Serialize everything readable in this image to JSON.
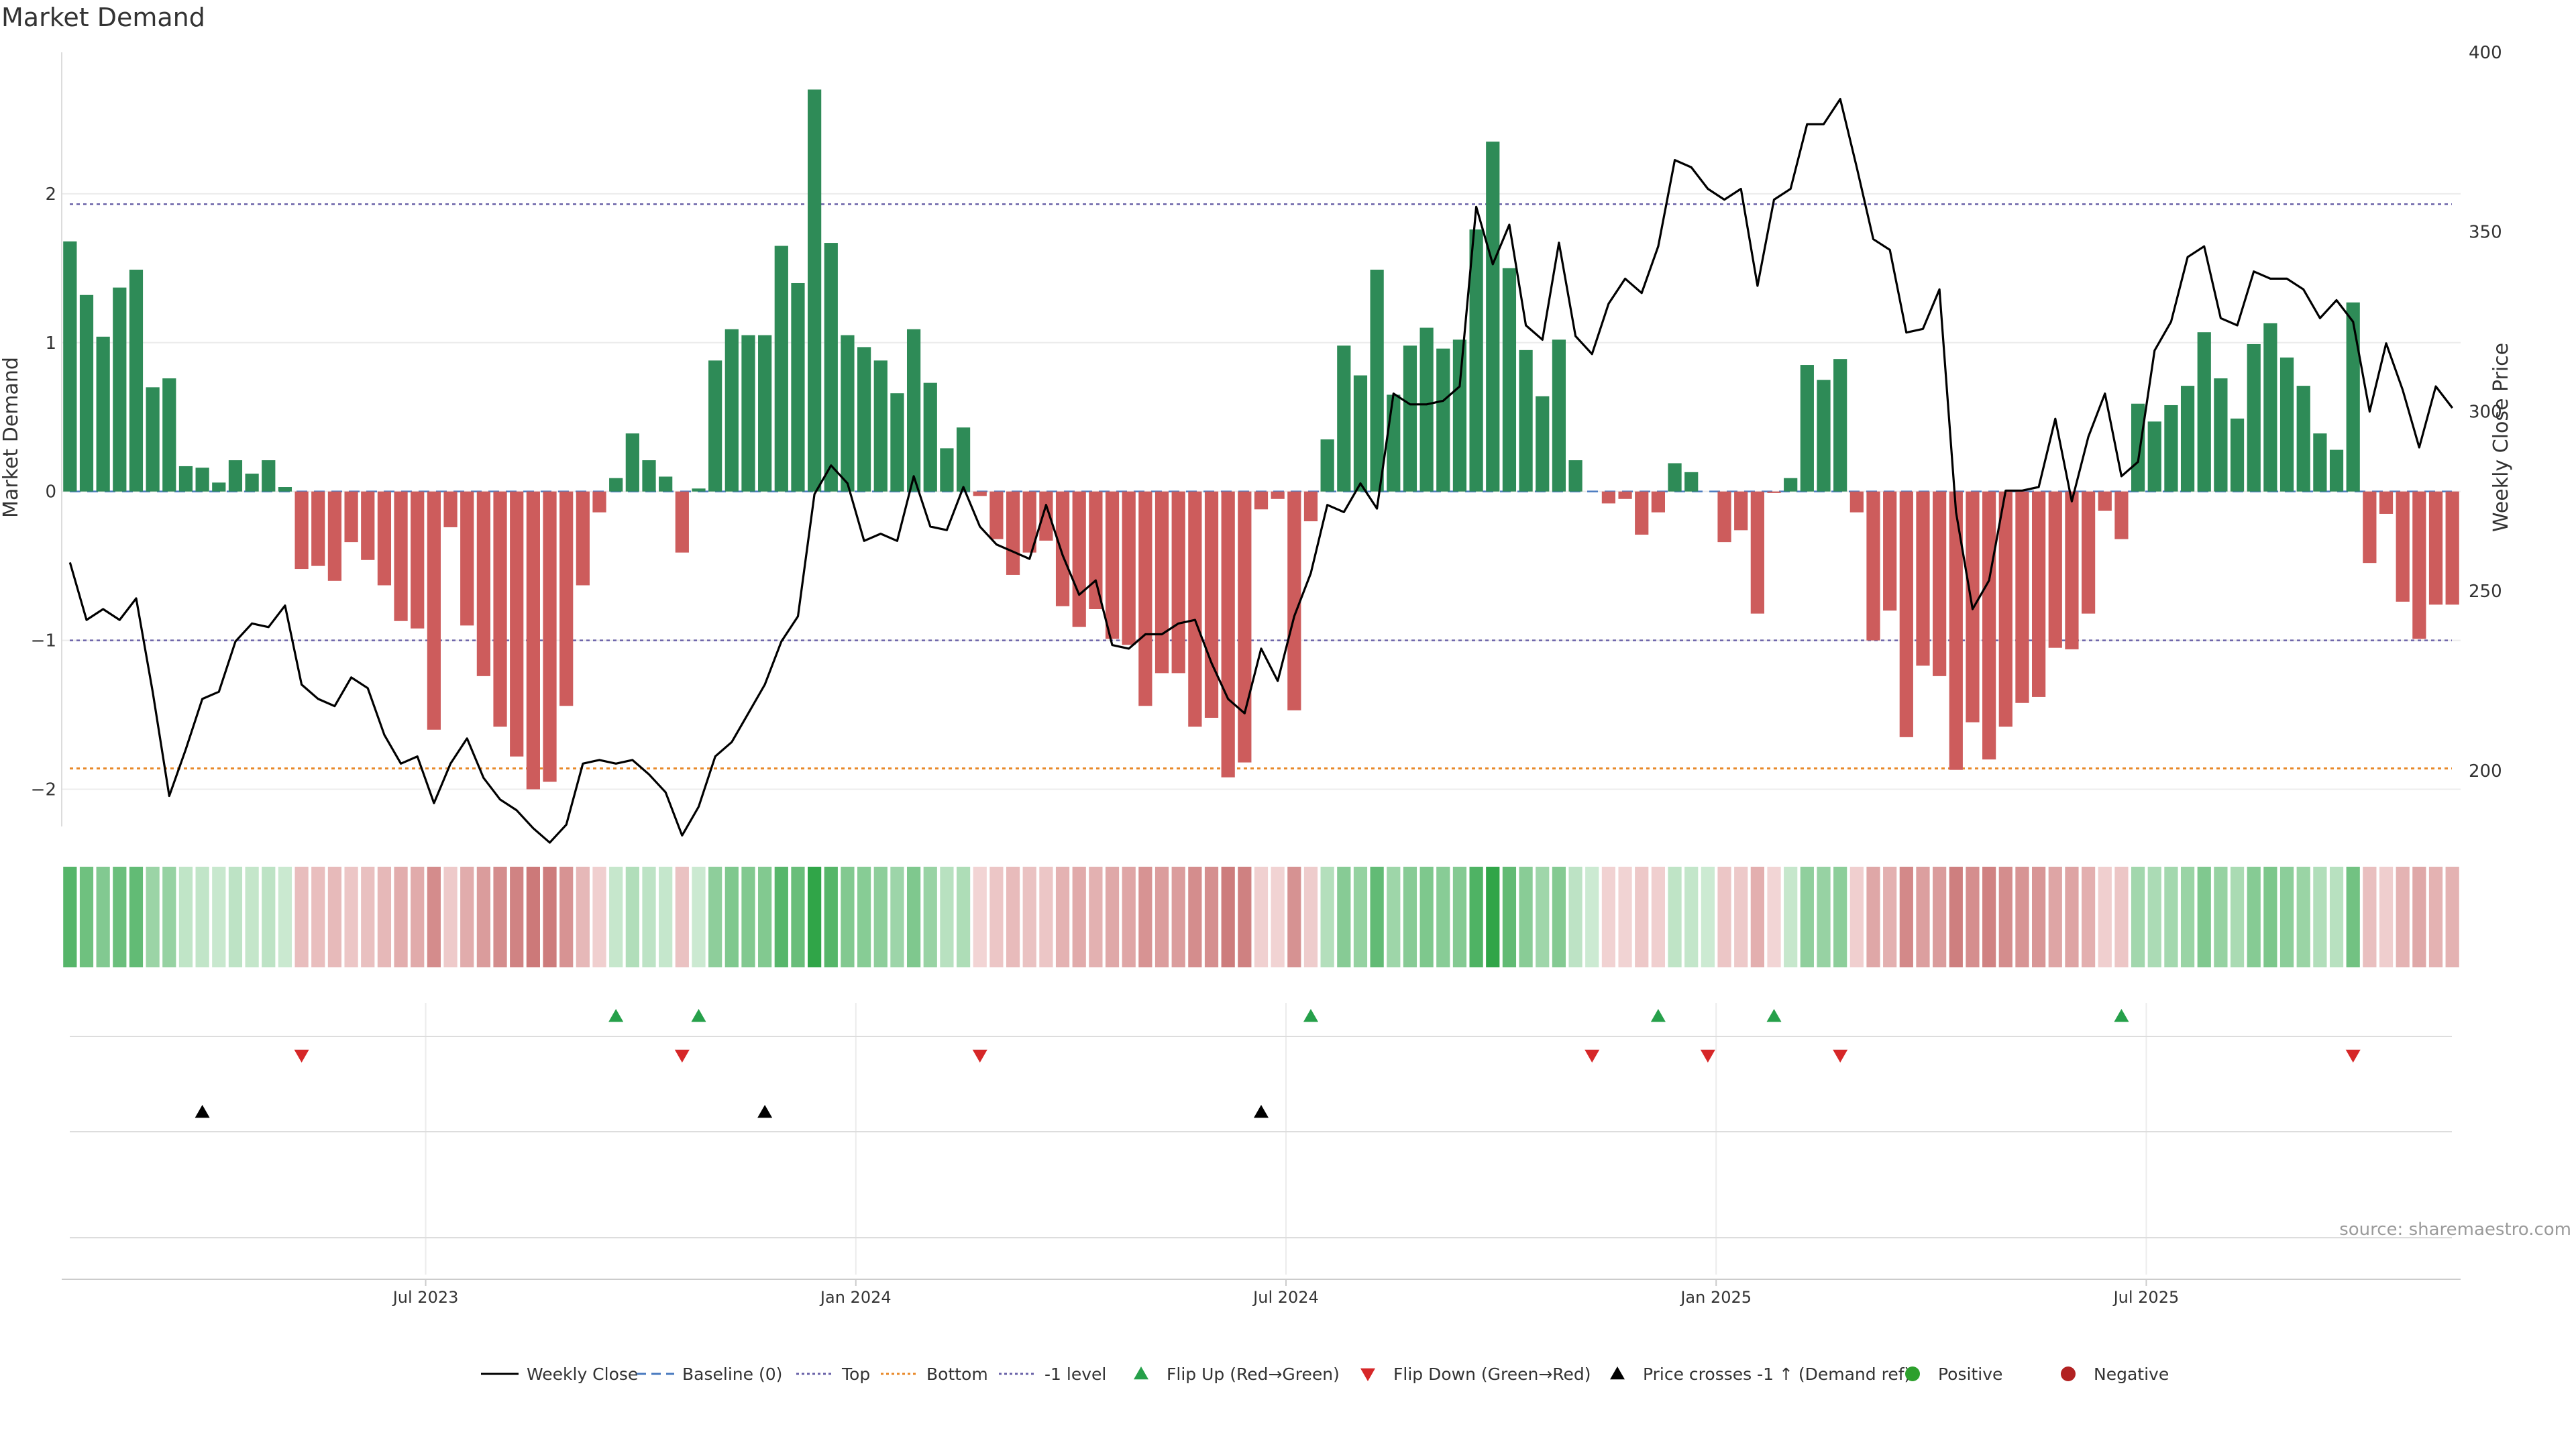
{
  "page": {
    "title": "Market Demand",
    "source": "source: sharemaestro.com"
  },
  "chart_data": {
    "type": "bar",
    "title": "Market Demand",
    "ylabel": "Market Demand",
    "y2label": "Weekly Close Price",
    "ylim": [
      -2.25,
      2.95
    ],
    "y2lim": [
      184.5,
      400
    ],
    "yticks": [
      -2,
      -1,
      0,
      1,
      2
    ],
    "y2ticks": [
      200,
      250,
      300,
      350,
      400
    ],
    "xtick_labels": [
      {
        "label": "Jul 2023",
        "index": 22
      },
      {
        "label": "Jan 2024",
        "index": 48
      },
      {
        "label": "Jul 2024",
        "index": 74
      },
      {
        "label": "Jan 2025",
        "index": 100
      },
      {
        "label": "Jul 2025",
        "index": 126
      }
    ],
    "reference_lines": [
      {
        "name": "Baseline (0)",
        "value": 0
      },
      {
        "name": "Top",
        "value": 1.93
      },
      {
        "name": "Bottom",
        "value": -1.86
      },
      {
        "name": "-1 level",
        "value": -1
      }
    ],
    "demand": [
      1.68,
      1.32,
      1.04,
      1.37,
      1.49,
      0.7,
      0.76,
      0.17,
      0.16,
      0.06,
      0.21,
      0.12,
      0.21,
      0.03,
      -0.52,
      -0.5,
      -0.6,
      -0.34,
      -0.46,
      -0.63,
      -0.87,
      -0.92,
      -1.6,
      -0.24,
      -0.9,
      -1.24,
      -1.58,
      -1.78,
      -2,
      -1.95,
      -1.44,
      -0.63,
      -0.14,
      0.09,
      0.39,
      0.21,
      0.1,
      -0.41,
      0.02,
      0.88,
      1.09,
      1.05,
      1.05,
      1.65,
      1.4,
      2.7,
      1.67,
      1.05,
      0.97,
      0.88,
      0.66,
      1.09,
      0.73,
      0.29,
      0.43,
      -0.03,
      -0.32,
      -0.56,
      -0.41,
      -0.33,
      -0.77,
      -0.91,
      -0.79,
      -0.99,
      -1.03,
      -1.44,
      -1.22,
      -1.22,
      -1.58,
      -1.52,
      -1.92,
      -1.82,
      -0.12,
      -0.05,
      -1.47,
      -0.2,
      0.35,
      0.98,
      0.78,
      1.49,
      0.65,
      0.98,
      1.1,
      0.96,
      1.02,
      1.76,
      2.35,
      1.5,
      0.95,
      0.64,
      1.02,
      0.21,
      0,
      -0.08,
      -0.05,
      -0.29,
      -0.14,
      0.19,
      0.13,
      0,
      -0.34,
      -0.26,
      -0.82,
      -0.01,
      0.09,
      0.85,
      0.75,
      0.89,
      -0.14,
      -1,
      -0.8,
      -1.65,
      -1.17,
      -1.24,
      -1.87,
      -1.55,
      -1.8,
      -1.58,
      -1.42,
      -1.38,
      -1.05,
      -1.06,
      -0.82,
      -0.13,
      -0.32,
      0.59,
      0.47,
      0.58,
      0.71,
      1.07,
      0.76,
      0.49,
      0.99,
      1.13,
      0.9,
      0.71,
      0.39,
      0.28,
      1.27,
      -0.48,
      -0.15,
      -0.74,
      -0.99,
      -0.76,
      -0.76
    ],
    "weekly_close": [
      [
        0,
        258
      ],
      [
        1,
        242
      ],
      [
        2,
        245
      ],
      [
        3,
        242
      ],
      [
        4,
        248
      ],
      [
        5,
        222
      ],
      [
        6,
        193
      ],
      [
        7,
        206
      ],
      [
        8,
        220
      ],
      [
        9,
        222
      ],
      [
        10,
        236
      ],
      [
        11,
        241
      ],
      [
        12,
        240
      ],
      [
        13,
        246
      ],
      [
        14,
        224
      ],
      [
        15,
        220
      ],
      [
        16,
        218
      ],
      [
        17,
        226
      ],
      [
        18,
        223
      ],
      [
        19,
        210
      ],
      [
        20,
        202
      ],
      [
        21,
        204
      ],
      [
        22,
        191
      ],
      [
        23,
        202
      ],
      [
        24,
        209
      ],
      [
        25,
        198
      ],
      [
        26,
        192
      ],
      [
        27,
        189
      ],
      [
        28,
        184
      ],
      [
        29,
        180
      ],
      [
        30,
        185
      ],
      [
        31,
        202
      ],
      [
        32,
        203
      ],
      [
        33,
        202
      ],
      [
        34,
        203
      ],
      [
        35,
        199
      ],
      [
        36,
        194
      ],
      [
        37,
        182
      ],
      [
        38,
        190
      ],
      [
        39,
        204
      ],
      [
        40,
        208
      ],
      [
        41,
        216
      ],
      [
        42,
        224
      ],
      [
        43,
        236
      ],
      [
        44,
        243
      ],
      [
        45,
        277
      ],
      [
        46,
        285
      ],
      [
        47,
        280
      ],
      [
        48,
        264
      ],
      [
        49,
        266
      ],
      [
        50,
        264
      ],
      [
        51,
        282
      ],
      [
        52,
        268
      ],
      [
        53,
        267
      ],
      [
        54,
        279
      ],
      [
        55,
        268
      ],
      [
        56,
        263
      ],
      [
        57,
        261
      ],
      [
        58,
        259
      ],
      [
        59,
        274
      ],
      [
        60,
        260
      ],
      [
        61,
        249
      ],
      [
        62,
        253
      ],
      [
        63,
        235
      ],
      [
        64,
        234
      ],
      [
        65,
        238
      ],
      [
        66,
        238
      ],
      [
        67,
        241
      ],
      [
        68,
        242
      ],
      [
        69,
        230
      ],
      [
        70,
        220
      ],
      [
        71,
        216
      ],
      [
        72,
        234
      ],
      [
        73,
        225
      ],
      [
        74,
        243
      ],
      [
        75,
        255
      ],
      [
        76,
        274
      ],
      [
        77,
        272
      ],
      [
        78,
        280
      ],
      [
        79,
        273
      ],
      [
        80,
        305
      ],
      [
        81,
        302
      ],
      [
        82,
        302
      ],
      [
        83,
        303
      ],
      [
        84,
        307
      ],
      [
        85,
        357
      ],
      [
        86,
        341
      ],
      [
        87,
        352
      ],
      [
        88,
        324
      ],
      [
        89,
        320
      ],
      [
        90,
        347
      ],
      [
        91,
        321
      ],
      [
        92,
        316
      ],
      [
        93,
        330
      ],
      [
        94,
        337
      ],
      [
        95,
        333
      ],
      [
        96,
        346
      ],
      [
        97,
        370
      ],
      [
        98,
        368
      ],
      [
        99,
        362
      ],
      [
        100,
        359
      ],
      [
        101,
        362
      ],
      [
        102,
        335
      ],
      [
        103,
        359
      ],
      [
        104,
        362
      ],
      [
        105,
        380
      ],
      [
        106,
        380
      ],
      [
        107,
        387
      ],
      [
        108,
        368
      ],
      [
        109,
        348
      ],
      [
        110,
        345
      ],
      [
        111,
        322
      ],
      [
        112,
        323
      ],
      [
        113,
        334
      ],
      [
        114,
        272
      ],
      [
        115,
        245
      ],
      [
        116,
        253
      ],
      [
        117,
        278
      ],
      [
        118,
        278
      ],
      [
        119,
        279
      ],
      [
        120,
        298
      ],
      [
        121,
        275
      ],
      [
        122,
        293
      ],
      [
        123,
        305
      ],
      [
        124,
        282
      ],
      [
        125,
        286
      ],
      [
        126,
        317
      ],
      [
        127,
        325
      ],
      [
        128,
        343
      ],
      [
        129,
        346
      ],
      [
        130,
        326
      ],
      [
        131,
        324
      ],
      [
        132,
        339
      ],
      [
        133,
        337
      ],
      [
        134,
        337
      ],
      [
        135,
        334
      ],
      [
        136,
        326
      ],
      [
        137,
        331
      ],
      [
        138,
        325
      ],
      [
        139,
        300
      ],
      [
        140,
        319
      ],
      [
        141,
        306
      ],
      [
        142,
        290
      ],
      [
        143,
        307
      ],
      [
        144,
        301
      ]
    ],
    "flip_up_indices": [
      33,
      38,
      75,
      96,
      103,
      124
    ],
    "flip_down_indices": [
      14,
      37,
      55,
      92,
      99,
      107,
      138
    ],
    "price_cross_indices": [
      8,
      42,
      72
    ],
    "legend": [
      {
        "label": "Weekly Close",
        "kind": "line-solid",
        "color": "#000000"
      },
      {
        "label": "Baseline (0)",
        "kind": "line-dash",
        "color": "#4a7bc0"
      },
      {
        "label": "Top",
        "kind": "line-dot",
        "color": "#6a62a8"
      },
      {
        "label": "Bottom",
        "kind": "line-dot",
        "color": "#e8892a"
      },
      {
        "label": "-1 level",
        "kind": "line-dot",
        "color": "#6a62a8"
      },
      {
        "label": "Flip Up (Red→Green)",
        "kind": "tri-up",
        "color": "#26a04a"
      },
      {
        "label": "Flip Down (Green→Red)",
        "kind": "tri-down",
        "color": "#d62728"
      },
      {
        "label": "Price crosses -1 ↑ (Demand ref)",
        "kind": "tri-up",
        "color": "#000000"
      },
      {
        "label": "Positive",
        "kind": "dot",
        "color": "#2ca02c"
      },
      {
        "label": "Negative",
        "kind": "dot",
        "color": "#b22222"
      }
    ],
    "colors": {
      "positive_bar": "#2e8b57",
      "negative_bar": "#cd5c5c",
      "line": "#000000",
      "flip_up": "#26a04a",
      "flip_down": "#d62728",
      "cross": "#000000"
    }
  }
}
